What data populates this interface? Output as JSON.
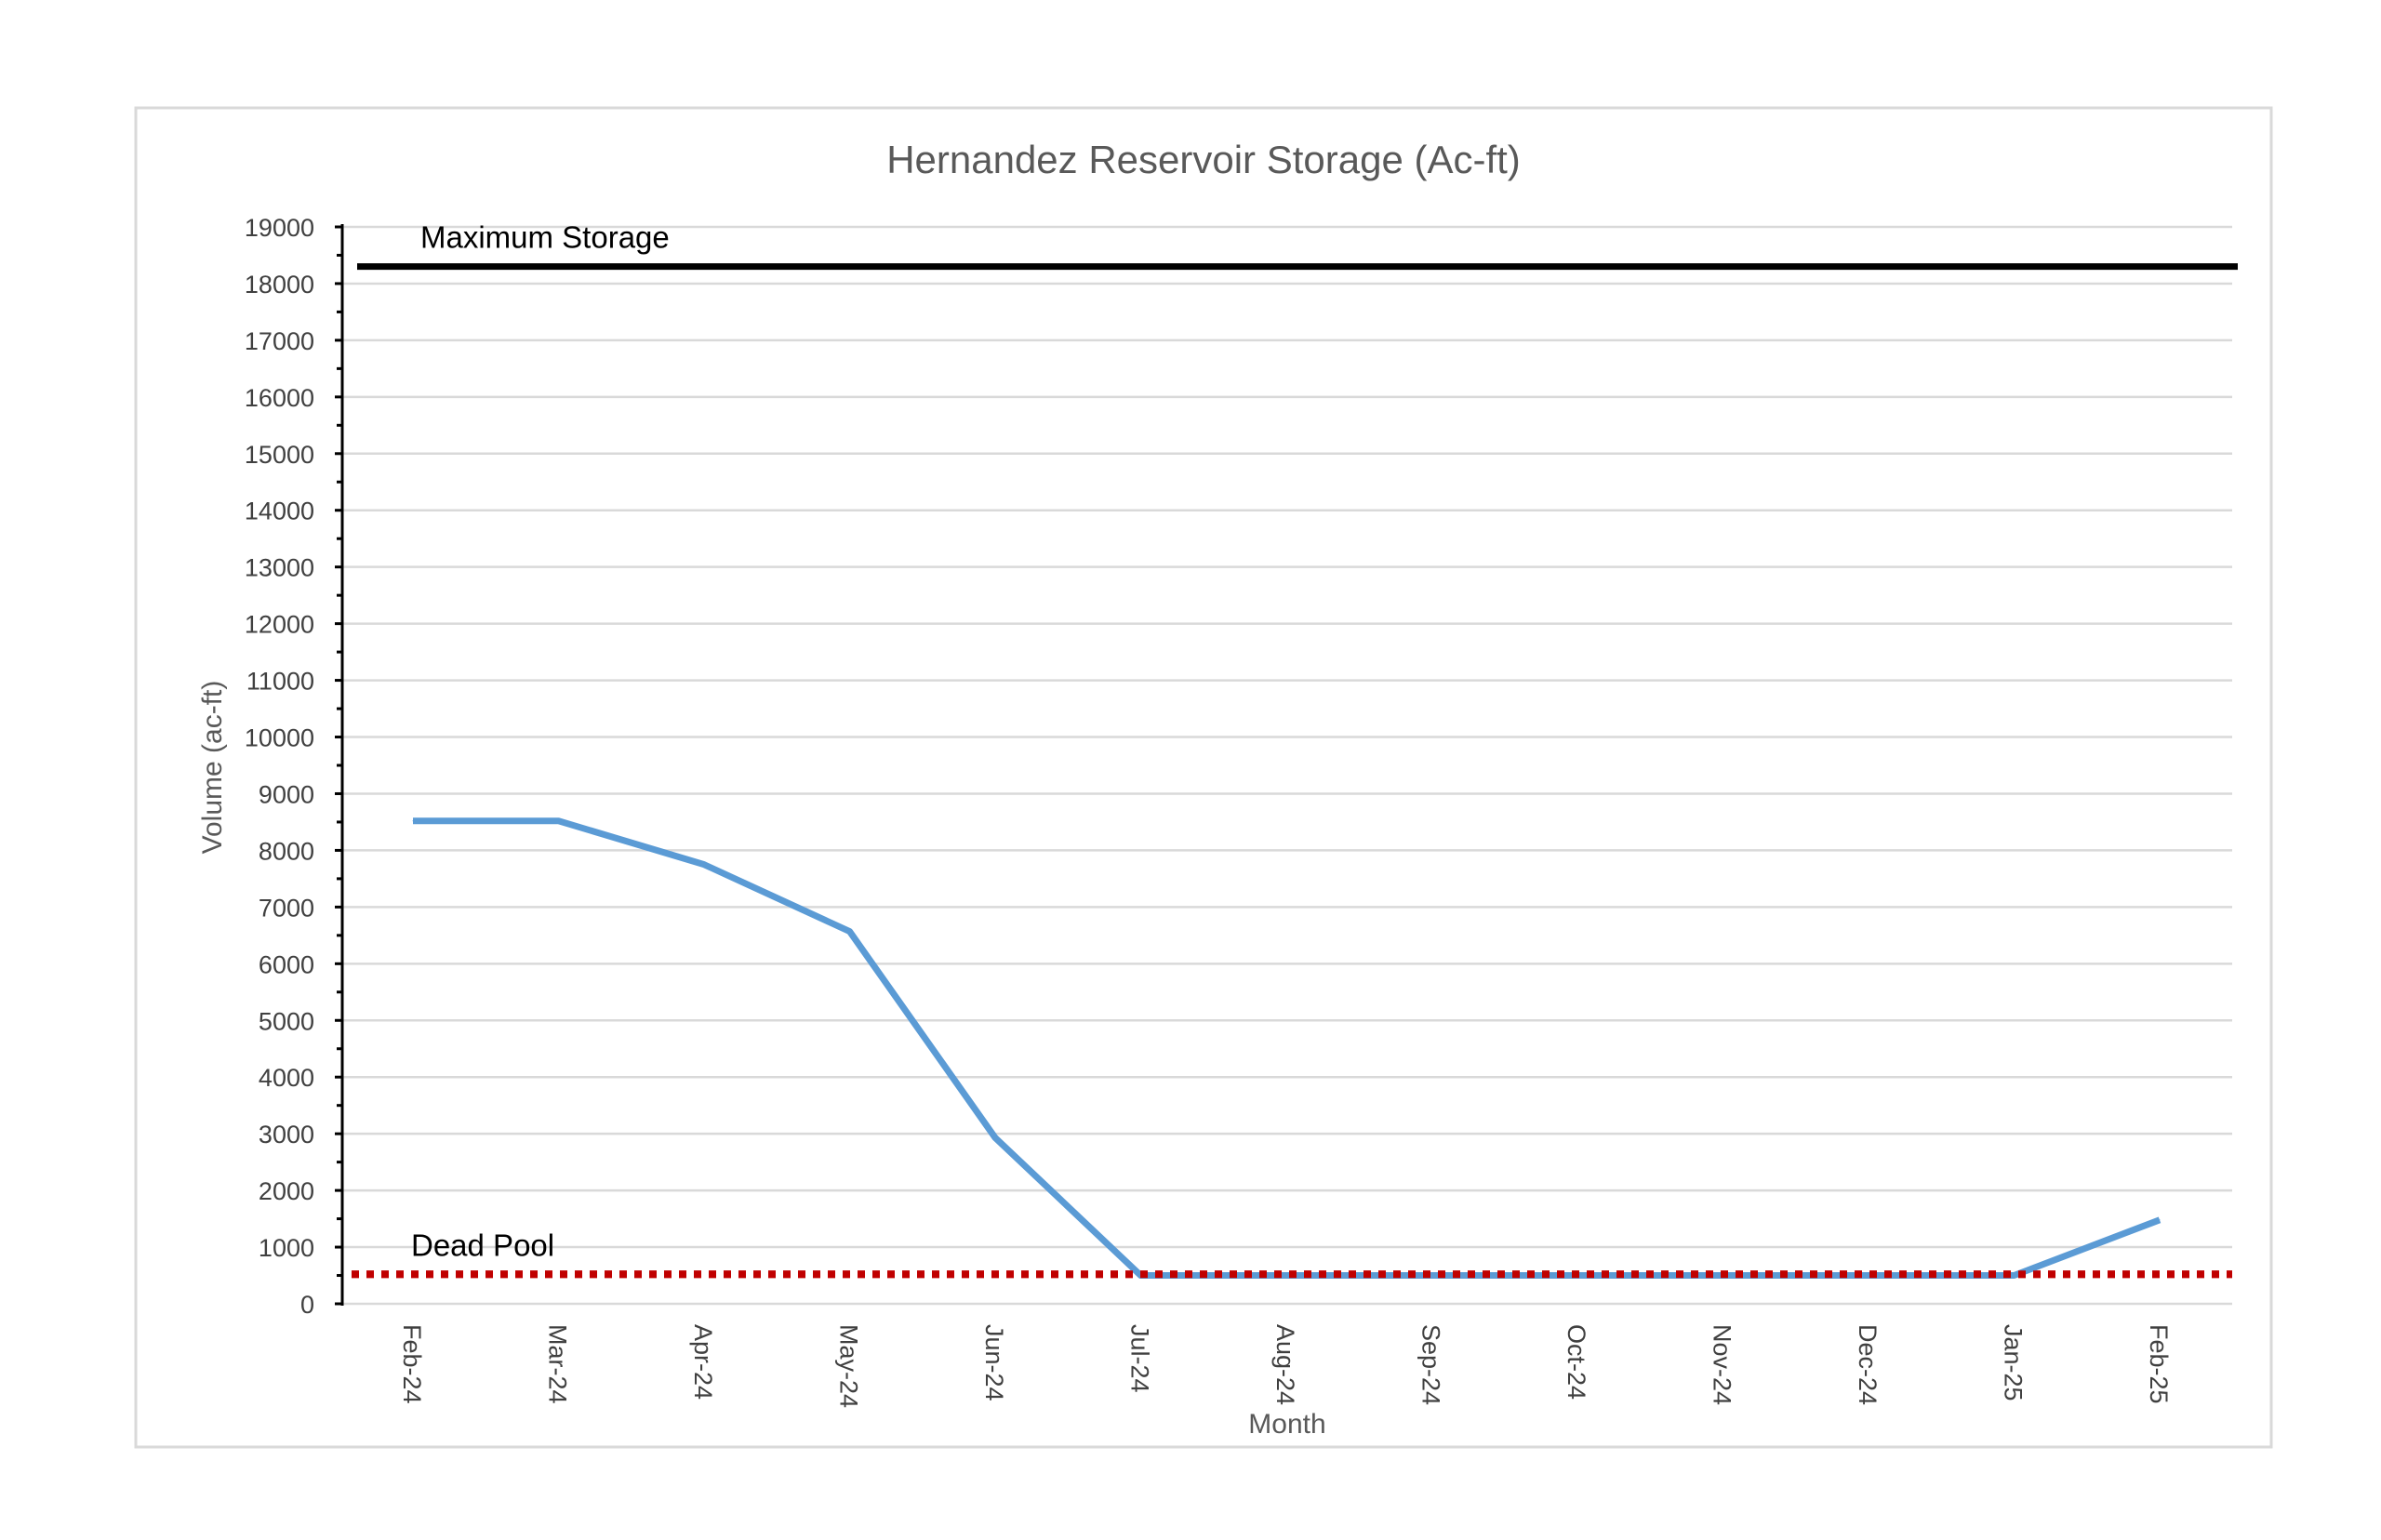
{
  "chart_data": {
    "type": "line",
    "title": "Hernandez Reservoir Storage (Ac-ft)",
    "xlabel": "Month",
    "ylabel": "Volume (ac-ft)",
    "categories": [
      "Feb-24",
      "Mar-24",
      "Apr-24",
      "May-24",
      "Jun-24",
      "Jul-24",
      "Aug-24",
      "Sep-24",
      "Oct-24",
      "Nov-24",
      "Dec-24",
      "Jan-25",
      "Feb-25"
    ],
    "series": [
      {
        "values": [
          8520,
          8520,
          7750,
          6570,
          2930,
          500,
          500,
          500,
          500,
          500,
          500,
          500,
          1480
        ],
        "color": "#5b9bd5"
      }
    ],
    "reference_lines": [
      {
        "label": "Maximum Storage",
        "value": 18300,
        "color": "#000000",
        "style": "solid"
      },
      {
        "label": "Dead Pool",
        "value": 520,
        "color": "#c00000",
        "style": "dotted"
      }
    ],
    "ylim": [
      0,
      19000
    ],
    "y_ticks": [
      "0",
      "1000",
      "2000",
      "3000",
      "4000",
      "5000",
      "6000",
      "7000",
      "8000",
      "9000",
      "10000",
      "11000",
      "12000",
      "13000",
      "14000",
      "15000",
      "16000",
      "17000",
      "18000",
      "19000"
    ],
    "grid": true,
    "legend": "none"
  }
}
